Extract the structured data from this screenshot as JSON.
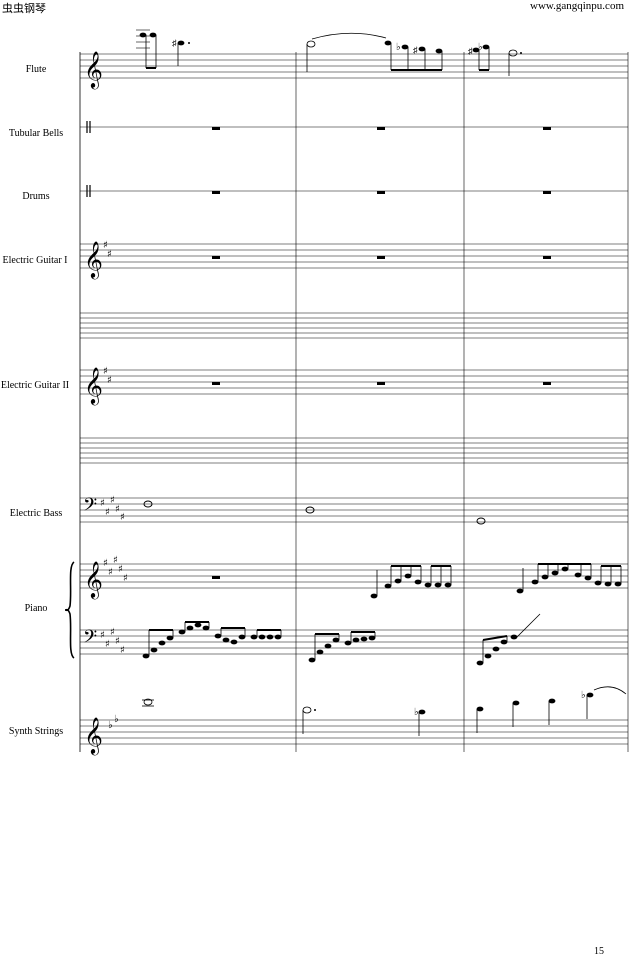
{
  "header": {
    "site_name": "虫虫钢琴",
    "site_url": "www.gangqinpu.com"
  },
  "instruments": [
    {
      "id": "flute",
      "label": "Flute"
    },
    {
      "id": "tubular-bells",
      "label": "Tubular Bells"
    },
    {
      "id": "drums",
      "label": "Drums"
    },
    {
      "id": "electric-guitar-1",
      "label": "Electric Guitar I"
    },
    {
      "id": "electric-guitar-2",
      "label": "Electric Guitar II"
    },
    {
      "id": "electric-bass",
      "label": "Electric Bass"
    },
    {
      "id": "piano",
      "label": "Piano"
    },
    {
      "id": "synth-strings",
      "label": "Synth Strings"
    }
  ],
  "page_number": "15"
}
